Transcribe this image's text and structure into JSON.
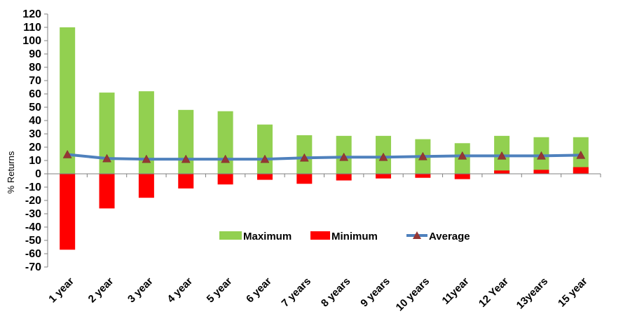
{
  "chart_data": {
    "type": "bar",
    "ylabel": "% Returns",
    "xlabel": "",
    "ylim": [
      -70,
      120
    ],
    "yticks": [
      120,
      110,
      100,
      90,
      80,
      70,
      60,
      50,
      40,
      30,
      20,
      10,
      0,
      -10,
      -20,
      -30,
      -40,
      -50,
      -60,
      -70
    ],
    "categories": [
      "1 year",
      "2 year",
      "3 year",
      "4 year",
      "5 year",
      "6 year",
      "7 years",
      "8 years",
      "9 years",
      "10 years",
      "11year",
      "12 Year",
      "13years",
      "15 year"
    ],
    "series": [
      {
        "name": "Maximum",
        "type": "bar",
        "color": "#92D050",
        "values": [
          110,
          61,
          62,
          48,
          47,
          37,
          29,
          28.5,
          28.5,
          26,
          23,
          28.5,
          27.5,
          27.5
        ]
      },
      {
        "name": "Minimum",
        "type": "bar",
        "color": "#FF0000",
        "values": [
          -57,
          -26,
          -18,
          -11,
          -8,
          -4.5,
          -7.5,
          -5,
          -3.5,
          -3,
          -4,
          2.5,
          3,
          5
        ]
      },
      {
        "name": "Average",
        "type": "line",
        "color": "#4F81BD",
        "marker": "triangle",
        "marker_color": "#953735",
        "values": [
          14.5,
          11.5,
          11,
          11,
          11,
          11,
          12,
          12.5,
          12.5,
          13,
          13.5,
          13.5,
          13.5,
          14
        ]
      }
    ],
    "legend_position": "inside-lower-center",
    "grid": false
  }
}
